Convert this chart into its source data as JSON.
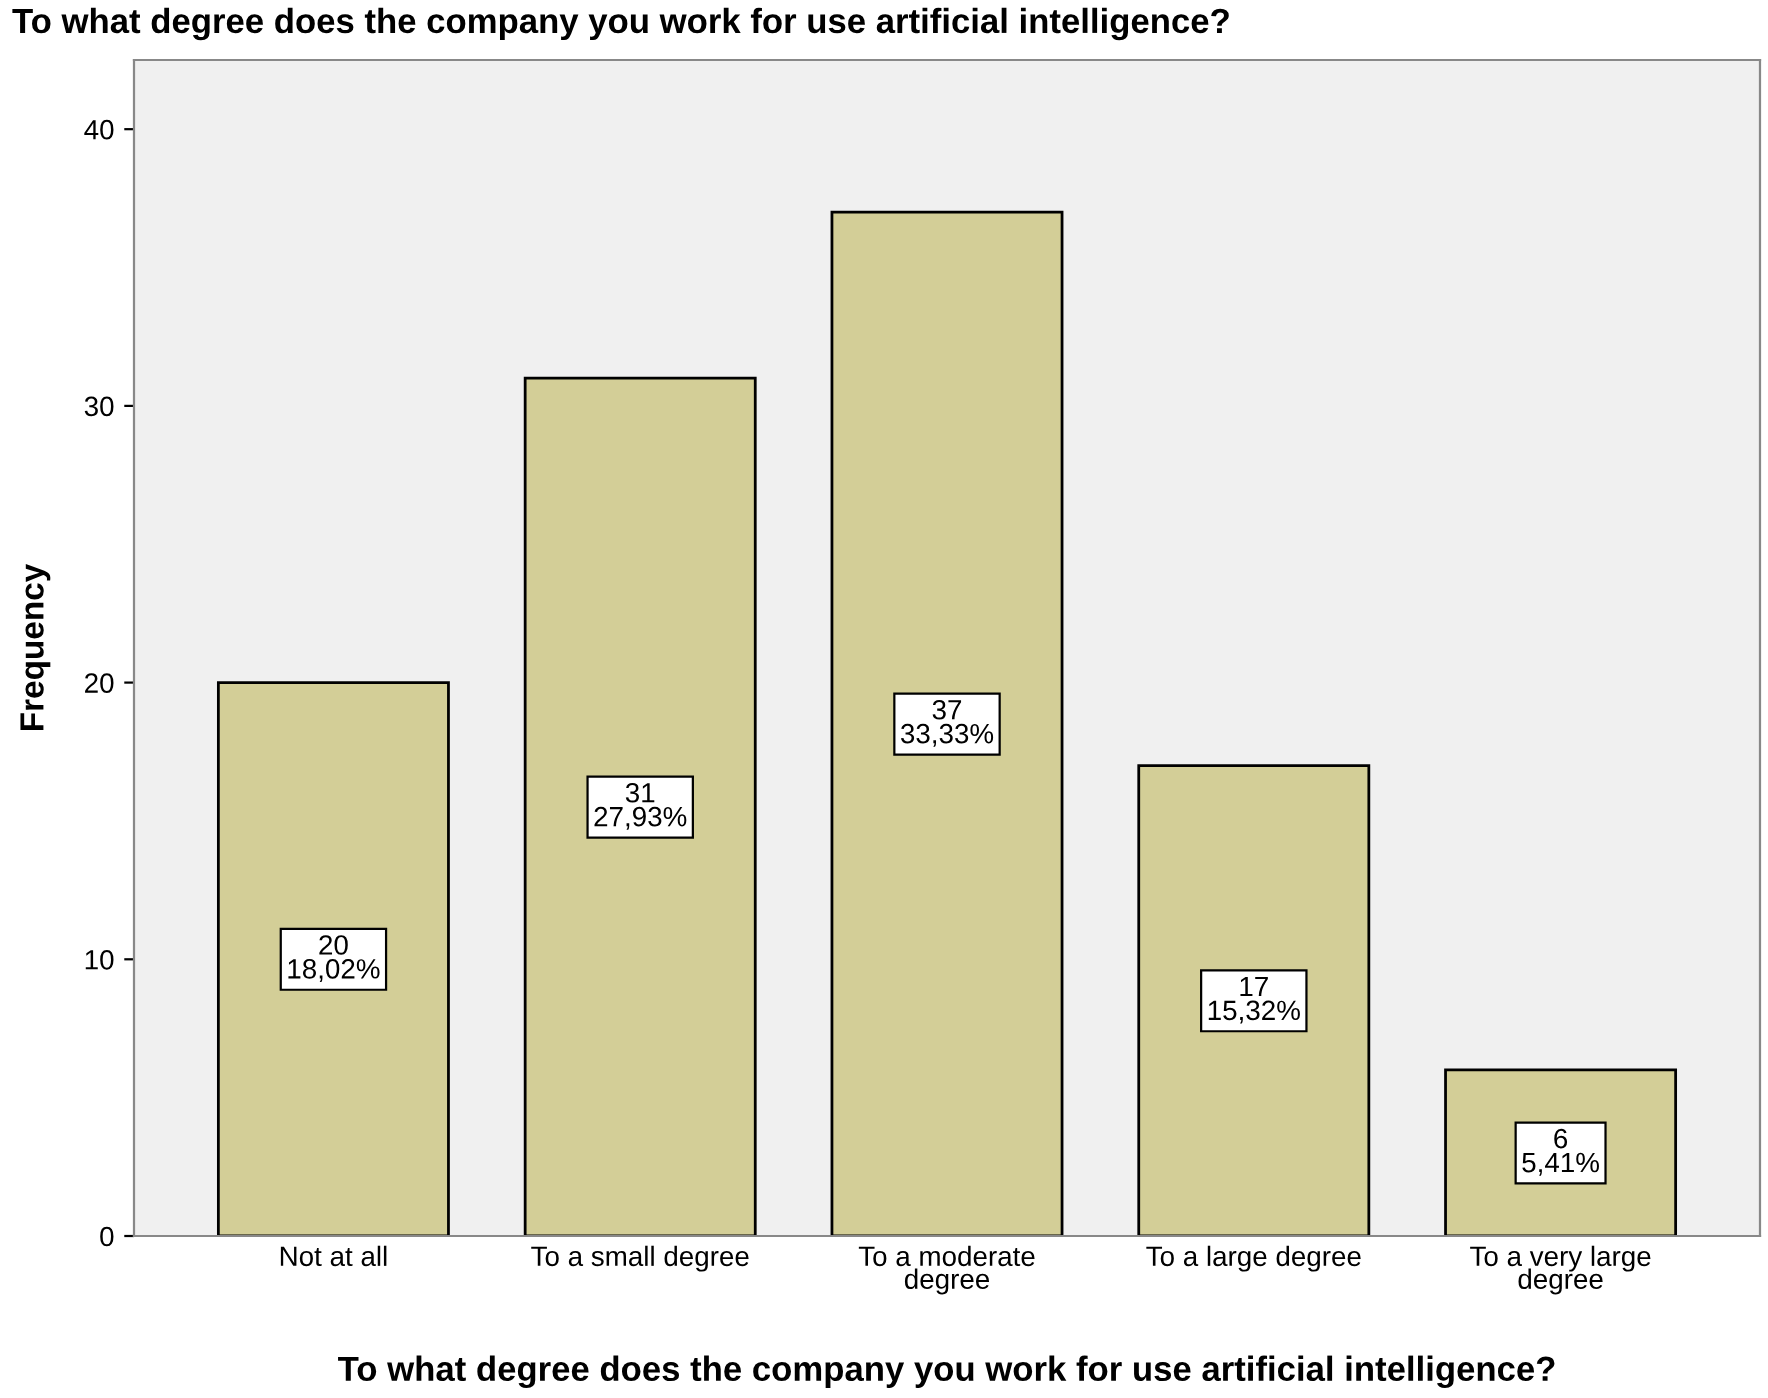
{
  "chart_data": {
    "type": "bar",
    "title": "To what degree does the company you work for use artificial intelligence?",
    "xlabel": "To what degree does the company you work for use artificial intelligence?",
    "ylabel": "Frequency",
    "categories": [
      "Not at all",
      "To a small degree",
      "To a moderate\ndegree",
      "To a large degree",
      "To a very large\ndegree"
    ],
    "values": [
      20,
      31,
      37,
      17,
      6
    ],
    "value_labels": [
      "20\n18,02%",
      "31\n27,93%",
      "37\n33,33%",
      "17\n15,32%",
      "6\n5,41%"
    ],
    "color": "#d3ce97",
    "ylim": [
      0,
      42.5
    ],
    "yticks": [
      0,
      10,
      20,
      30,
      40
    ],
    "grid": false,
    "legend": false
  }
}
